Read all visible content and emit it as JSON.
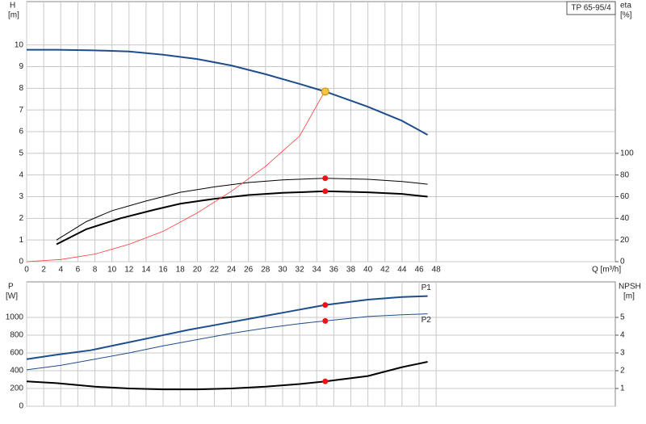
{
  "chart_data": [
    {
      "type": "line",
      "model": "TP 65-95/4",
      "ylabel": "H",
      "yunit": "[m]",
      "y2label": "eta",
      "y2unit": "[%]",
      "xlabel": "Q [m³/h]",
      "xlim": [
        0,
        69
      ],
      "xticks": [
        0,
        2,
        4,
        6,
        8,
        10,
        12,
        14,
        16,
        18,
        20,
        22,
        24,
        26,
        28,
        30,
        32,
        34,
        36,
        38,
        40,
        42,
        44,
        46,
        48
      ],
      "ylim": [
        0,
        12
      ],
      "yticks": [
        0,
        1,
        2,
        3,
        4,
        5,
        6,
        7,
        8,
        9,
        10
      ],
      "y2lim": [
        0,
        240
      ],
      "y2ticks": [
        0,
        20,
        40,
        60,
        80,
        100
      ],
      "grid": true,
      "xtick_labels": true,
      "series": [
        {
          "color": "#1f4e8c",
          "width": 2,
          "axis": "y",
          "x": [
            0,
            3.5,
            8,
            12,
            16,
            20,
            24,
            28,
            32,
            35,
            40,
            44,
            47
          ],
          "values": [
            9.78,
            9.78,
            9.75,
            9.7,
            9.55,
            9.35,
            9.05,
            8.65,
            8.2,
            7.85,
            7.15,
            6.5,
            5.85
          ]
        },
        {
          "color": "#000000",
          "width": 1,
          "axis": "y2",
          "x": [
            3.5,
            7,
            10,
            14,
            18,
            22,
            26,
            30,
            35,
            40,
            44,
            47
          ],
          "values": [
            20,
            37,
            47,
            56,
            64,
            69,
            73,
            75.5,
            77,
            76,
            74,
            71.5
          ]
        },
        {
          "color": "#000000",
          "width": 2,
          "axis": "y2",
          "x": [
            3.5,
            7,
            11,
            15,
            18,
            22,
            26,
            30,
            35,
            40,
            44,
            47
          ],
          "values": [
            16,
            30,
            40,
            48,
            53.5,
            58,
            61.5,
            63.5,
            65,
            64,
            62.5,
            60
          ]
        },
        {
          "color": "#ff3b3b",
          "width": 0.8,
          "axis": "y",
          "x": [
            0,
            4,
            8,
            12,
            16,
            20,
            24,
            28,
            32,
            35
          ],
          "values": [
            0,
            0.1,
            0.35,
            0.8,
            1.4,
            2.25,
            3.25,
            4.4,
            5.8,
            7.9
          ]
        },
        {
          "mode": "markers",
          "color": "#f5c542",
          "axis": "y",
          "x": [
            35
          ],
          "values": [
            7.85
          ]
        },
        {
          "mode": "markers",
          "color": "#ee1111",
          "axis": "y2",
          "x": [
            35,
            35
          ],
          "values": [
            77,
            65
          ]
        }
      ]
    },
    {
      "type": "line",
      "ylabel": "P",
      "yunit": "[W]",
      "y2label": "NPSH",
      "y2unit": "[m]",
      "xlim": [
        0,
        69
      ],
      "xticks": [
        0,
        2,
        4,
        6,
        8,
        10,
        12,
        14,
        16,
        18,
        20,
        22,
        24,
        26,
        28,
        30,
        32,
        34,
        36,
        38,
        40,
        42,
        44,
        46,
        48
      ],
      "ylim": [
        0,
        1400
      ],
      "yticks": [
        0,
        200,
        400,
        600,
        800,
        1000
      ],
      "y2lim": [
        0,
        7
      ],
      "y2ticks": [
        1,
        2,
        3,
        4,
        5
      ],
      "grid": true,
      "xtick_labels": false,
      "series": [
        {
          "name": "P1",
          "color": "#1f4e8c",
          "width": 2,
          "axis": "y",
          "x": [
            0,
            3.5,
            7.5,
            11,
            15,
            19,
            23,
            27,
            31,
            35,
            40,
            44,
            47
          ],
          "values": [
            530,
            580,
            630,
            700,
            780,
            860,
            930,
            1000,
            1070,
            1140,
            1200,
            1230,
            1240
          ]
        },
        {
          "name": "P2",
          "color": "#1f4e8c",
          "width": 1,
          "axis": "y",
          "x": [
            0,
            4,
            8,
            12,
            16,
            20,
            24,
            28,
            32,
            35,
            40,
            44,
            47
          ],
          "values": [
            410,
            460,
            530,
            600,
            680,
            750,
            820,
            880,
            930,
            960,
            1010,
            1030,
            1040
          ]
        },
        {
          "color": "#000000",
          "width": 2,
          "axis": "y2",
          "x": [
            0,
            3.5,
            8,
            12,
            16,
            20,
            24,
            28,
            32,
            35,
            40,
            44,
            47
          ],
          "values": [
            1.4,
            1.3,
            1.1,
            1.0,
            0.95,
            0.95,
            1.0,
            1.1,
            1.25,
            1.4,
            1.7,
            2.2,
            2.5
          ]
        },
        {
          "mode": "markers",
          "color": "#ee1111",
          "axis": "y",
          "x": [
            35,
            35
          ],
          "values": [
            1140,
            960
          ]
        },
        {
          "mode": "markers",
          "color": "#ee1111",
          "axis": "y2",
          "x": [
            35
          ],
          "values": [
            1.4
          ]
        }
      ]
    }
  ]
}
